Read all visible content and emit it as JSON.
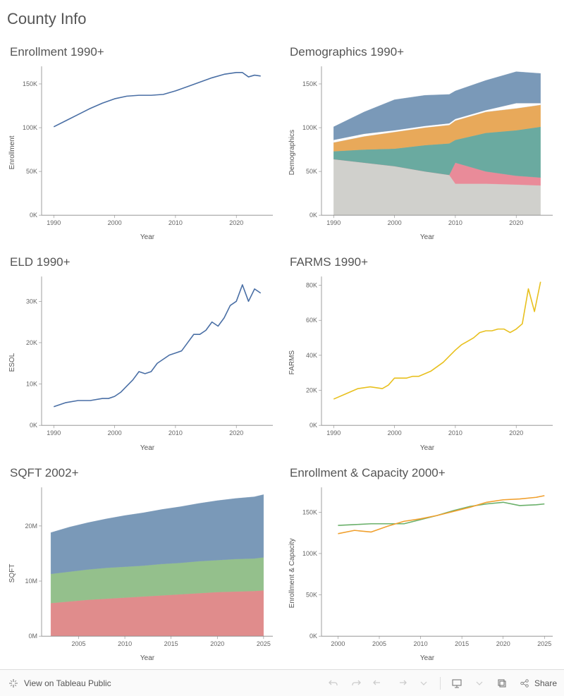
{
  "page_title": "County Info",
  "toolbar": {
    "view_label": "View on Tableau Public",
    "share_label": "Share"
  },
  "colors": {
    "line_blue": "#4a6fa5",
    "line_orange": "#f0a02e",
    "line_yellow": "#e8c01e",
    "line_green": "#6ab06a",
    "area_grey": "#d0d0cc",
    "area_pink": "#e98b99",
    "area_teal": "#6aaaa0",
    "area_orange": "#e8a95a",
    "area_blue": "#7a99b8",
    "area_green": "#94c08c",
    "area_red": "#e08c8c",
    "axis": "#888888",
    "bg": "#ffffff"
  },
  "charts": {
    "enrollment": {
      "type": "line",
      "title": "Enrollment 1990+",
      "ylabel": "Enrollment",
      "xlabel": "Year",
      "xlim": [
        1988,
        2026
      ],
      "ylim": [
        0,
        170
      ],
      "yticks": [
        0,
        50,
        100,
        150
      ],
      "ytick_labels": [
        "0K",
        "50K",
        "100K",
        "150K"
      ],
      "xticks": [
        1990,
        2000,
        2010,
        2020
      ],
      "series": [
        {
          "color": "#4a6fa5",
          "width": 1.6,
          "x": [
            1990,
            1992,
            1994,
            1996,
            1998,
            2000,
            2002,
            2004,
            2006,
            2008,
            2010,
            2012,
            2014,
            2016,
            2018,
            2020,
            2021,
            2022,
            2023,
            2024
          ],
          "y": [
            101,
            108,
            115,
            122,
            128,
            133,
            136,
            137,
            137,
            138,
            142,
            147,
            152,
            157,
            161,
            163,
            163,
            158,
            160,
            159
          ]
        }
      ]
    },
    "demographics": {
      "type": "stacked_area",
      "title": "Demographics 1990+",
      "ylabel": "Demographics",
      "xlabel": "Year",
      "xlim": [
        1988,
        2026
      ],
      "ylim": [
        0,
        170
      ],
      "yticks": [
        0,
        50,
        100,
        150
      ],
      "ytick_labels": [
        "0K",
        "50K",
        "100K",
        "150K"
      ],
      "xticks": [
        1990,
        2000,
        2010,
        2020
      ],
      "x": [
        1990,
        1995,
        2000,
        2005,
        2009,
        2010,
        2015,
        2020,
        2024
      ],
      "stack": [
        {
          "color": "#d0d0cc",
          "y": [
            64,
            60,
            56,
            50,
            46,
            36,
            36,
            35,
            34
          ]
        },
        {
          "color": "#e98b99",
          "y": [
            0,
            0,
            0,
            0,
            0,
            24,
            14,
            10,
            9
          ]
        },
        {
          "color": "#6aaaa0",
          "y": [
            9,
            15,
            20,
            30,
            36,
            26,
            44,
            52,
            58
          ]
        },
        {
          "color": "#e8a95a",
          "y": [
            10,
            15,
            19,
            20,
            21,
            22,
            24,
            25,
            25
          ]
        },
        {
          "color": "#ffffff",
          "y": [
            3,
            3,
            2,
            2,
            2,
            2,
            2,
            6,
            2
          ]
        },
        {
          "color": "#7a99b8",
          "y": [
            15,
            25,
            35,
            35,
            33,
            32,
            34,
            36,
            34
          ]
        }
      ]
    },
    "eld": {
      "type": "line",
      "title": "ELD 1990+",
      "ylabel": "ESOL",
      "xlabel": "Year",
      "xlim": [
        1988,
        2026
      ],
      "ylim": [
        0,
        36
      ],
      "yticks": [
        0,
        10,
        20,
        30
      ],
      "ytick_labels": [
        "0K",
        "10K",
        "20K",
        "30K"
      ],
      "xticks": [
        1990,
        2000,
        2010,
        2020
      ],
      "series": [
        {
          "color": "#4a6fa5",
          "width": 1.6,
          "x": [
            1990,
            1992,
            1994,
            1996,
            1998,
            1999,
            2000,
            2001,
            2002,
            2003,
            2004,
            2005,
            2006,
            2007,
            2008,
            2009,
            2010,
            2011,
            2012,
            2013,
            2014,
            2015,
            2016,
            2017,
            2018,
            2019,
            2020,
            2021,
            2022,
            2023,
            2024
          ],
          "y": [
            4.5,
            5.5,
            6,
            6,
            6.5,
            6.5,
            7,
            8,
            9.5,
            11,
            13,
            12.5,
            13,
            15,
            16,
            17,
            17.5,
            18,
            20,
            22,
            22,
            23,
            25,
            24,
            26,
            29,
            30,
            34,
            30,
            33,
            32
          ]
        }
      ]
    },
    "farms": {
      "type": "line",
      "title": "FARMS 1990+",
      "ylabel": "FARMS",
      "xlabel": "Year",
      "xlim": [
        1988,
        2026
      ],
      "ylim": [
        0,
        85
      ],
      "yticks": [
        0,
        20,
        40,
        60,
        80
      ],
      "ytick_labels": [
        "0K",
        "20K",
        "40K",
        "60K",
        "80K"
      ],
      "xticks": [
        1990,
        2000,
        2010,
        2020
      ],
      "series": [
        {
          "color": "#e8c01e",
          "width": 1.6,
          "x": [
            1990,
            1992,
            1994,
            1996,
            1998,
            1999,
            2000,
            2002,
            2003,
            2004,
            2006,
            2008,
            2010,
            2011,
            2012,
            2013,
            2014,
            2015,
            2016,
            2017,
            2018,
            2019,
            2020,
            2021,
            2022,
            2023,
            2024
          ],
          "y": [
            15,
            18,
            21,
            22,
            21,
            23,
            27,
            27,
            28,
            28,
            31,
            36,
            43,
            46,
            48,
            50,
            53,
            54,
            54,
            55,
            55,
            53,
            55,
            58,
            78,
            65,
            82
          ]
        }
      ]
    },
    "sqft": {
      "type": "stacked_area",
      "title": "SQFT 2002+",
      "ylabel": "SQFT",
      "xlabel": "Year",
      "xlim": [
        2001,
        2026
      ],
      "ylim": [
        0,
        27
      ],
      "yticks": [
        0,
        10,
        20
      ],
      "ytick_labels": [
        "0M",
        "10M",
        "20M"
      ],
      "xticks": [
        2005,
        2010,
        2015,
        2020,
        2025
      ],
      "x": [
        2002,
        2004,
        2006,
        2008,
        2010,
        2012,
        2014,
        2016,
        2018,
        2020,
        2022,
        2024,
        2025
      ],
      "stack": [
        {
          "color": "#e08c8c",
          "y": [
            6.0,
            6.3,
            6.6,
            6.8,
            7.0,
            7.2,
            7.4,
            7.6,
            7.8,
            8.0,
            8.1,
            8.2,
            8.3
          ]
        },
        {
          "color": "#94c08c",
          "y": [
            5.3,
            5.4,
            5.5,
            5.6,
            5.6,
            5.6,
            5.7,
            5.7,
            5.8,
            5.8,
            5.9,
            5.9,
            6.0
          ]
        },
        {
          "color": "#7a99b8",
          "y": [
            7.5,
            8.1,
            8.5,
            8.9,
            9.3,
            9.6,
            9.9,
            10.2,
            10.5,
            10.8,
            11.0,
            11.2,
            11.4
          ]
        }
      ]
    },
    "cap": {
      "type": "line",
      "title": "Enrollment & Capacity 2000+",
      "ylabel": "Enrollment & Capacity",
      "xlabel": "Year",
      "xlim": [
        1998,
        2026
      ],
      "ylim": [
        0,
        180
      ],
      "yticks": [
        0,
        50,
        100,
        150
      ],
      "ytick_labels": [
        "0K",
        "50K",
        "100K",
        "150K"
      ],
      "xticks": [
        2000,
        2005,
        2010,
        2015,
        2020,
        2025
      ],
      "series": [
        {
          "color": "#6ab06a",
          "width": 1.6,
          "x": [
            2000,
            2002,
            2004,
            2006,
            2008,
            2010,
            2012,
            2014,
            2016,
            2018,
            2020,
            2022,
            2024,
            2025
          ],
          "y": [
            134,
            135,
            136,
            136,
            136,
            141,
            146,
            152,
            157,
            160,
            162,
            158,
            159,
            160
          ]
        },
        {
          "color": "#f0a02e",
          "width": 1.6,
          "x": [
            2000,
            2002,
            2004,
            2006,
            2008,
            2010,
            2012,
            2014,
            2016,
            2018,
            2020,
            2022,
            2024,
            2025
          ],
          "y": [
            124,
            128,
            126,
            133,
            139,
            142,
            146,
            151,
            156,
            162,
            165,
            166,
            168,
            170
          ]
        }
      ]
    }
  }
}
